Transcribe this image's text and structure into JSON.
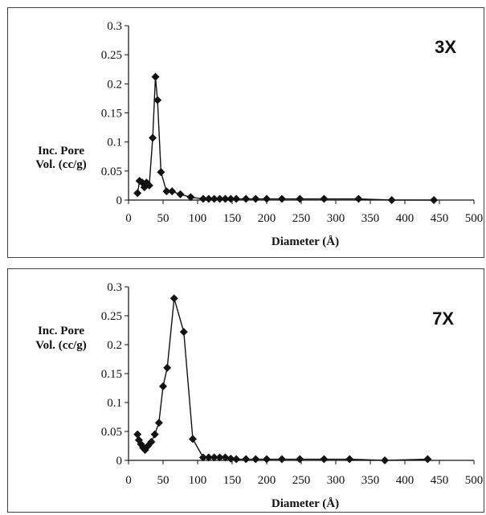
{
  "chart_data": [
    {
      "type": "line",
      "label": "3X",
      "ylabel_line1": "Inc. Pore",
      "ylabel_line2": "Vol. (cc/g)",
      "xlabel": "Diameter (Å)",
      "xlim": [
        0,
        500
      ],
      "ylim": [
        0,
        0.3
      ],
      "xticks": [
        0,
        50,
        100,
        150,
        200,
        250,
        300,
        350,
        400,
        450,
        500
      ],
      "yticks": [
        0,
        0.05,
        0.1,
        0.15,
        0.2,
        0.25,
        0.3
      ],
      "grid": false,
      "marker": "diamond",
      "x": [
        13,
        16,
        20,
        23,
        26,
        30,
        35,
        39,
        42,
        47,
        55,
        63,
        75,
        90,
        108,
        116,
        124,
        132,
        140,
        148,
        156,
        170,
        184,
        200,
        222,
        248,
        283,
        333,
        381,
        442
      ],
      "y": [
        0.012,
        0.033,
        0.03,
        0.022,
        0.03,
        0.025,
        0.107,
        0.212,
        0.172,
        0.048,
        0.015,
        0.015,
        0.01,
        0.005,
        0.002,
        0.002,
        0.002,
        0.002,
        0.002,
        0.002,
        0.002,
        0.002,
        0.002,
        0.002,
        0.002,
        0.002,
        0.002,
        0.002,
        0.0,
        0.0
      ]
    },
    {
      "type": "line",
      "label": "7X",
      "ylabel_line1": "Inc. Pore",
      "ylabel_line2": "Vol. (cc/g)",
      "xlabel": "Diameter (Å)",
      "xlim": [
        0,
        500
      ],
      "ylim": [
        0,
        0.3
      ],
      "xticks": [
        0,
        50,
        100,
        150,
        200,
        250,
        300,
        350,
        400,
        450,
        500
      ],
      "yticks": [
        0,
        0.05,
        0.1,
        0.15,
        0.2,
        0.25,
        0.3
      ],
      "grid": false,
      "marker": "diamond",
      "x": [
        13,
        15,
        18,
        21,
        24,
        28,
        33,
        38,
        44,
        50,
        56,
        66,
        80,
        93,
        108,
        116,
        124,
        132,
        140,
        148,
        156,
        170,
        184,
        200,
        222,
        248,
        283,
        320,
        371,
        433
      ],
      "y": [
        0.045,
        0.035,
        0.028,
        0.022,
        0.018,
        0.025,
        0.032,
        0.045,
        0.065,
        0.128,
        0.16,
        0.28,
        0.222,
        0.037,
        0.005,
        0.005,
        0.005,
        0.005,
        0.005,
        0.003,
        0.002,
        0.002,
        0.002,
        0.002,
        0.002,
        0.002,
        0.002,
        0.002,
        0.0,
        0.002
      ]
    }
  ]
}
